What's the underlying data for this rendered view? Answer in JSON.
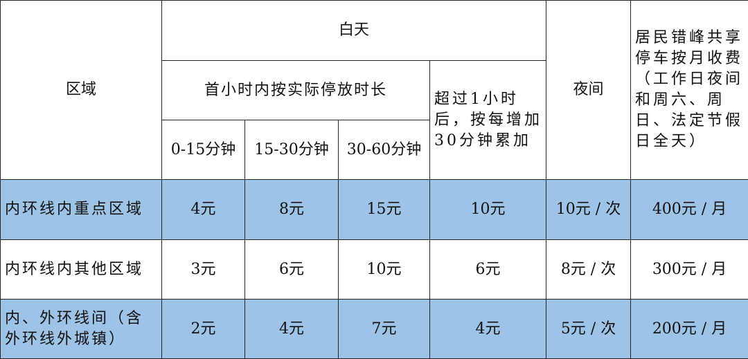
{
  "header": {
    "region": "区域",
    "daytime": "白天",
    "first_hour": "首小时内按实际停放时长",
    "over_hour": "超过1小时后，按每增加30分钟累加",
    "night": "夜间",
    "resident": "居民错峰共享停车按月收费（工作日夜间和周六、周日、法定节假日全天）",
    "sub": [
      "0-15分钟",
      "15-30分钟",
      "30-60分钟"
    ]
  },
  "rows": [
    {
      "region": "内环线内重点区域",
      "c1": "4元",
      "c2": "8元",
      "c3": "15元",
      "over": "10元",
      "night": "10元 / 次",
      "monthly": "400元 / 月"
    },
    {
      "region": "内环线内其他区域",
      "c1": "3元",
      "c2": "6元",
      "c3": "10元",
      "over": "6元",
      "night": "8元 / 次",
      "monthly": "300元 / 月"
    },
    {
      "region": "内、外环线间（含外环线外城镇）",
      "c1": "2元",
      "c2": "4元",
      "c3": "7元",
      "over": "4元",
      "night": "5元 / 次",
      "monthly": "200元 / 月"
    }
  ],
  "colors": {
    "row_highlight": "#9dc3e6"
  }
}
